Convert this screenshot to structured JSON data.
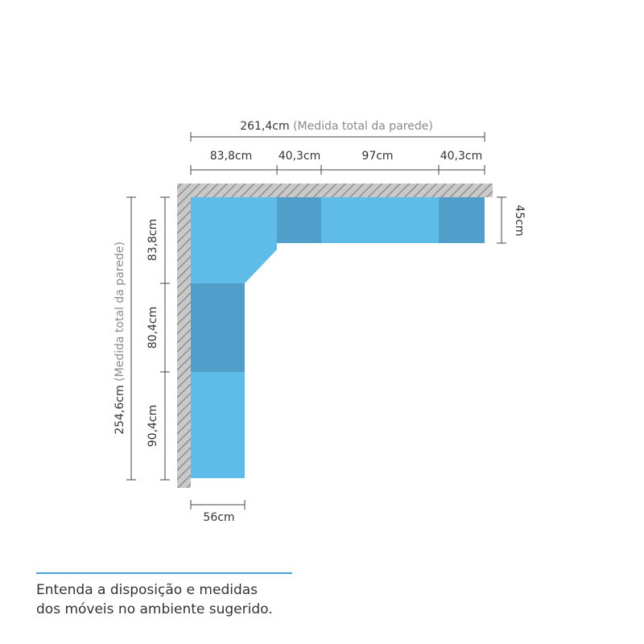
{
  "top_dimensions": {
    "total": "261,4cm",
    "total_note": "(Medida total da parede)",
    "segments": [
      "83,8cm",
      "40,3cm",
      "97cm",
      "40,3cm"
    ]
  },
  "left_dimensions": {
    "total": "254,6cm",
    "total_note": "(Medida total da parede)",
    "segments": [
      "83,8cm",
      "80,4cm",
      "90,4cm"
    ]
  },
  "depth_right": "45cm",
  "depth_bottom": "56cm",
  "caption": [
    "Entenda a disposição e medidas",
    "dos móveis no ambiente sugerido."
  ]
}
